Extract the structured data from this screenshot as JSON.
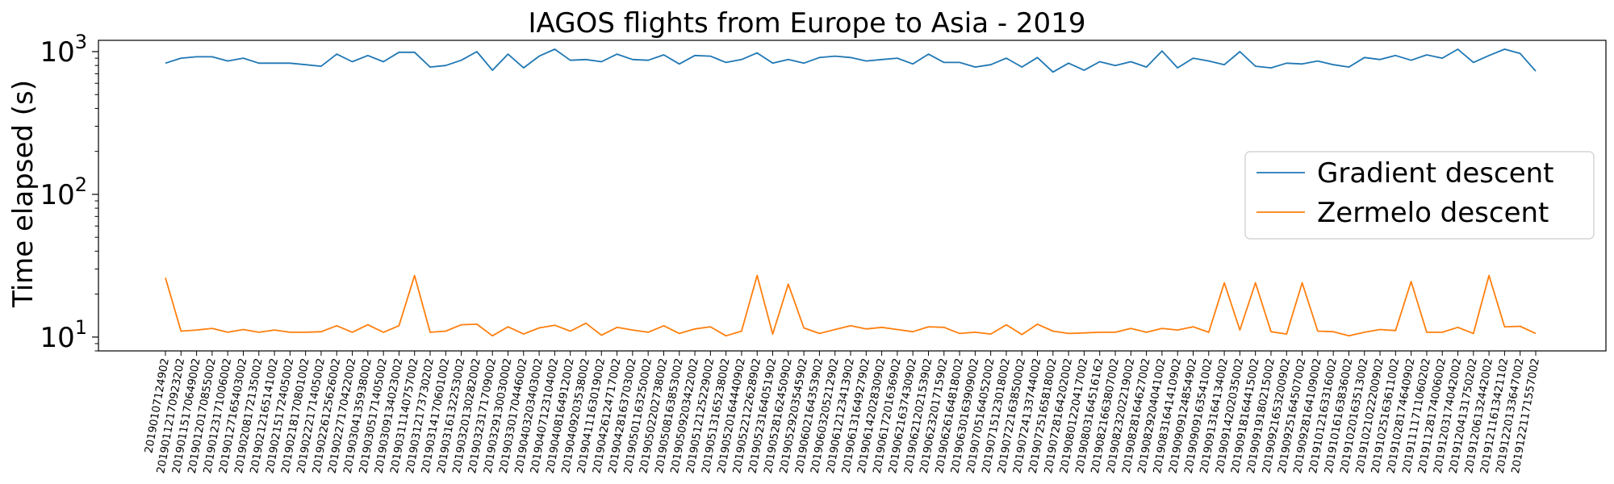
{
  "chart_data": {
    "type": "line",
    "title": "IAGOS flights from Europe to Asia - 2019",
    "xlabel": "",
    "ylabel": "Time elapsed (s)",
    "yscale": "log",
    "ylim": [
      8,
      1200
    ],
    "y_ticks": [
      {
        "value": 10,
        "base": "10",
        "exp": "1"
      },
      {
        "value": 100,
        "base": "10",
        "exp": "2"
      },
      {
        "value": 1000,
        "base": "10",
        "exp": "3"
      }
    ],
    "grid": false,
    "legend": "center-right",
    "categories": [
      "20190107124902",
      "20190112170923202",
      "20190115170649002",
      "20190120170855002",
      "20190123171006002",
      "20190127165403002",
      "20190208172135002",
      "20190212165141002",
      "20190215172405002",
      "20190218170801002",
      "20190222171405002",
      "20190226125626002",
      "20190227170422002",
      "20190304135938002",
      "20190305171405002",
      "20190309134023002",
      "20190311140757002",
      "20190312173730202",
      "20190314170601002",
      "20190316132253002",
      "20190320130282002",
      "20190323171709002",
      "20190329130030002",
      "20190330170446002",
      "20190403203403002",
      "20190407123104002",
      "20190408164912002",
      "20190409203538002",
      "20190411163019002",
      "20190426124717002",
      "20190428163703002",
      "20190501163250002",
      "20190502202738002",
      "20190508163853002",
      "20190509203422002",
      "20190512125229002",
      "20190513165238002",
      "20190520164440902",
      "20190522122628902",
      "20190523164051902",
      "20190528162450902",
      "20190529203545902",
      "20190602164353902",
      "20190603205212902",
      "20190612123413902",
      "20190613164927902",
      "20190614202830902",
      "20190617201636902",
      "20190621637430902",
      "20190621202153902",
      "20190623201715902",
      "20190626164818002",
      "20190630163909002",
      "20190705164052002",
      "20190715123018002",
      "20190722163850002",
      "20190724133744002",
      "20190725165818002",
      "20190728164202002",
      "20190801220417002",
      "20190803164516162",
      "20190821663807002",
      "20190823202219002",
      "20190828164627002",
      "20190829204041002",
      "20190831641410902",
      "20190909124854902",
      "20190909163541002",
      "20190913164134002",
      "20190914202035002",
      "20190918164415002",
      "20190919180215002",
      "20190921653200902",
      "20190925164507002",
      "20190928164109002",
      "20191012163316002",
      "20191016163836002",
      "20191020163513002",
      "20191021022200902",
      "20191025163611002",
      "20191028174640902",
      "20191111711060202",
      "20191128174006002",
      "20191203174042002",
      "20191204131750202",
      "20191206132442002",
      "20191211613421102",
      "20191220133647002",
      "20191221171557002"
    ],
    "series": [
      {
        "name": "Gradient descent",
        "color": "#1f77b4",
        "values": [
          830,
          900,
          920,
          920,
          860,
          900,
          830,
          830,
          830,
          810,
          790,
          960,
          850,
          940,
          850,
          990,
          990,
          780,
          800,
          870,
          1000,
          740,
          960,
          770,
          930,
          1040,
          870,
          880,
          850,
          960,
          880,
          870,
          950,
          820,
          940,
          930,
          840,
          880,
          980,
          830,
          880,
          830,
          910,
          930,
          910,
          860,
          880,
          900,
          820,
          960,
          840,
          840,
          780,
          810,
          900,
          780,
          910,
          720,
          830,
          740,
          850,
          800,
          850,
          780,
          1010,
          770,
          900,
          860,
          810,
          1000,
          790,
          770,
          830,
          820,
          860,
          810,
          780,
          910,
          880,
          940,
          870,
          950,
          900,
          1040,
          840,
          940,
          1040,
          970,
          730
        ]
      },
      {
        "name": "Zermelo descent",
        "color": "#ff7f0e",
        "values": [
          26,
          11,
          11.2,
          11.5,
          10.8,
          11.3,
          10.8,
          11.2,
          10.8,
          10.8,
          10.9,
          12,
          10.8,
          12.2,
          10.8,
          12,
          27,
          10.8,
          11,
          12.2,
          12.3,
          10.2,
          11.8,
          10.5,
          11.6,
          12.1,
          11,
          12.5,
          10.3,
          11.7,
          11.2,
          10.8,
          12,
          10.6,
          11.4,
          11.8,
          10.2,
          11,
          27,
          10.5,
          23.5,
          11.6,
          10.6,
          11.3,
          12,
          11.4,
          11.7,
          11.3,
          10.9,
          11.8,
          11.7,
          10.6,
          10.8,
          10.5,
          12.2,
          10.4,
          12.3,
          11,
          10.6,
          10.7,
          10.8,
          10.8,
          11.5,
          10.8,
          11.5,
          11.2,
          11.8,
          10.8,
          24,
          11.2,
          24,
          10.9,
          10.5,
          24,
          11,
          10.9,
          10.2,
          10.8,
          11.3,
          11.1,
          24.5,
          10.8,
          10.8,
          11.7,
          10.6,
          27,
          11.8,
          11.9,
          10.6
        ]
      }
    ]
  }
}
